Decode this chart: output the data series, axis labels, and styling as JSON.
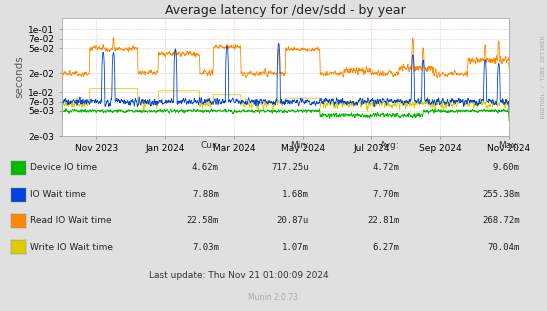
{
  "title": "Average latency for /dev/sdd - by year",
  "ylabel": "seconds",
  "fig_bg_color": "#E0E0E0",
  "plot_bg_color": "#FFFFFF",
  "grid_color": "#DDAAAA",
  "yticks": [
    0.002,
    0.005,
    0.007,
    0.01,
    0.02,
    0.05,
    0.07,
    0.1
  ],
  "ytick_labels": [
    "2e-03",
    "5e-03",
    "7e-03",
    "1e-02",
    "2e-02",
    "5e-02",
    "7e-02",
    "1e-01"
  ],
  "xtick_labels": [
    "Nov 2023",
    "Jan 2024",
    "Mar 2024",
    "May 2024",
    "Jul 2024",
    "Sep 2024",
    "Nov 2024"
  ],
  "xtick_pos": [
    1,
    3,
    5,
    7,
    9,
    11,
    13
  ],
  "series_colors": [
    "#00BB00",
    "#0044DD",
    "#FF8800",
    "#DDCC00"
  ],
  "series_labels": [
    "Device IO time",
    "IO Wait time",
    "Read IO Wait time",
    "Write IO Wait time"
  ],
  "legend_headers": [
    "Cur:",
    "Min:",
    "Avg:",
    "Max:"
  ],
  "legend_rows": [
    [
      "4.62m",
      "717.25u",
      "4.72m",
      "9.60m"
    ],
    [
      "7.88m",
      "1.68m",
      "7.70m",
      "255.38m"
    ],
    [
      "22.58m",
      "20.87u",
      "22.81m",
      "268.72m"
    ],
    [
      "7.03m",
      "1.07m",
      "6.27m",
      "70.04m"
    ]
  ],
  "last_update": "Last update: Thu Nov 21 01:00:09 2024",
  "watermark": "Munin 2.0.73",
  "rrdtool_label": "RRDTOOL / TOBI OETIKER",
  "title_fontsize": 9,
  "tick_fontsize": 6.5,
  "legend_fontsize": 6.5
}
